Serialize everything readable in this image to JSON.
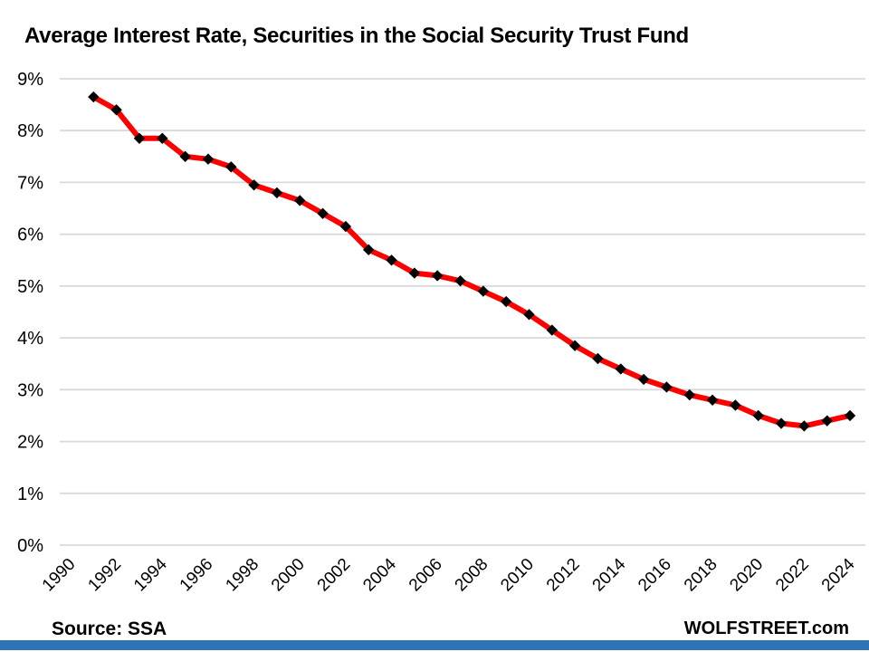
{
  "header": {
    "title": "Average Interest Rate, Securities in the Social Security Trust Fund"
  },
  "chart_data": {
    "type": "line",
    "title": "Average Interest Rate, Securities in the Social Security Trust Fund",
    "series_name": "Average interest rate, Social Security Trust Fund securities",
    "x": [
      1991,
      1992,
      1993,
      1994,
      1995,
      1996,
      1997,
      1998,
      1999,
      2000,
      2001,
      2002,
      2003,
      2004,
      2005,
      2006,
      2007,
      2008,
      2009,
      2010,
      2011,
      2012,
      2013,
      2014,
      2015,
      2016,
      2017,
      2018,
      2019,
      2020,
      2021,
      2022,
      2023,
      2024
    ],
    "values": [
      8.65,
      8.4,
      7.85,
      7.85,
      7.5,
      7.45,
      7.3,
      6.95,
      6.8,
      6.65,
      6.4,
      6.15,
      5.7,
      5.5,
      5.25,
      5.2,
      5.1,
      4.9,
      4.7,
      4.45,
      4.15,
      3.85,
      3.6,
      3.4,
      3.2,
      3.05,
      2.9,
      2.8,
      2.7,
      2.5,
      2.35,
      2.3,
      2.4,
      2.5
    ],
    "xlabel": "",
    "ylabel": "",
    "ylim": [
      0,
      9
    ],
    "yticks": [
      0,
      1,
      2,
      3,
      4,
      5,
      6,
      7,
      8,
      9
    ],
    "ytick_suffix": "%",
    "xticks": [
      1990,
      1992,
      1994,
      1996,
      1998,
      2000,
      2002,
      2004,
      2006,
      2008,
      2010,
      2012,
      2014,
      2016,
      2018,
      2020,
      2022,
      2024
    ],
    "grid": "horizontal",
    "legend": "none",
    "line_color": "#FF0000",
    "marker": "diamond",
    "marker_color": "#000000",
    "gridline_color": "#D9D9D9"
  },
  "footer": {
    "source": "Source: SSA",
    "brand": "WOLFSTREET.com",
    "bar_color": "#2E74B5"
  }
}
